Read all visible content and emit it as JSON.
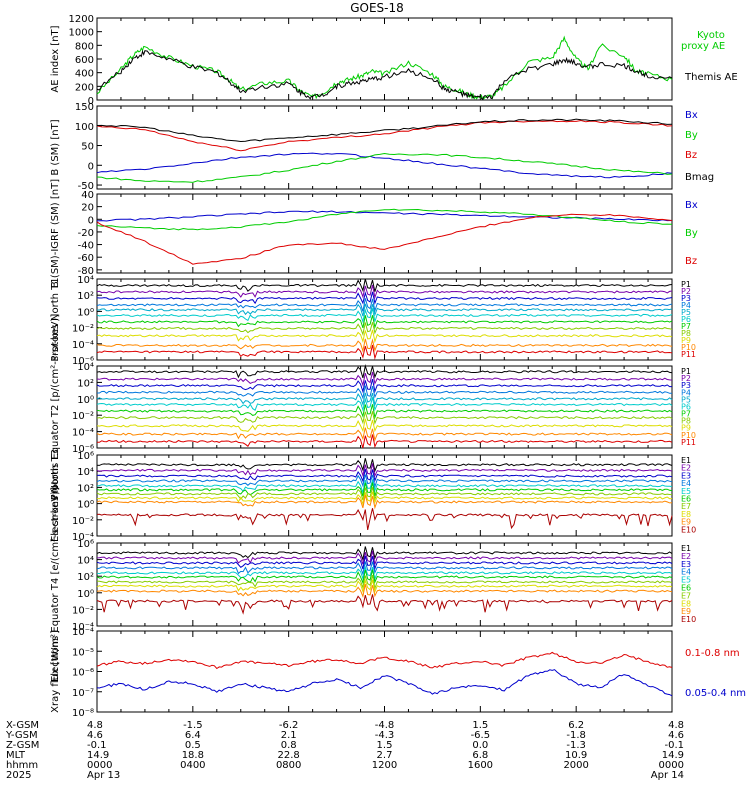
{
  "title": "GOES-18",
  "colors": {
    "black": "#000000",
    "red": "#dd0000",
    "green": "#00cc00",
    "blue": "#0000cc",
    "purple": "#7700aa",
    "cyan": "#00cccc",
    "yellow": "#dddd00",
    "orange": "#ff8800"
  },
  "chart_data": [
    {
      "type": "line",
      "ylabel": "AE index [nT]",
      "ylim": [
        0,
        1200
      ],
      "yticks": [
        "0",
        "200",
        "400",
        "600",
        "800",
        "1000",
        "1200"
      ],
      "series": [
        {
          "name": "Kyoto proxy AE",
          "color": "#00cc00",
          "x": [
            0,
            1,
            1.5,
            2,
            3,
            4,
            5,
            5.5,
            6,
            7,
            8,
            8.5,
            9,
            9.5,
            10,
            10.5,
            11,
            11.5,
            12,
            13,
            14,
            14.5,
            15,
            15.5,
            16,
            16.5,
            17,
            18,
            19,
            19.5,
            20,
            20.5,
            21,
            22,
            22.5,
            23,
            24
          ],
          "y": [
            100,
            450,
            650,
            780,
            620,
            500,
            420,
            300,
            150,
            250,
            280,
            130,
            40,
            120,
            260,
            300,
            350,
            420,
            380,
            550,
            380,
            200,
            150,
            80,
            40,
            60,
            200,
            560,
            620,
            900,
            600,
            450,
            800,
            650,
            420,
            380,
            300
          ]
        },
        {
          "name": "Themis AE",
          "color": "#000000",
          "x": [
            0,
            1,
            1.5,
            2,
            3,
            4,
            5,
            5.5,
            6,
            7,
            8,
            8.5,
            9,
            9.5,
            10,
            10.5,
            11,
            11.5,
            12,
            13,
            14,
            14.5,
            15,
            15.5,
            16,
            16.5,
            17,
            18,
            19,
            19.5,
            20,
            20.5,
            21,
            22,
            22.5,
            23,
            24
          ],
          "y": [
            150,
            420,
            600,
            700,
            600,
            480,
            400,
            280,
            130,
            200,
            240,
            110,
            40,
            90,
            200,
            240,
            270,
            300,
            340,
            420,
            320,
            160,
            120,
            60,
            30,
            50,
            280,
            450,
            520,
            580,
            540,
            480,
            520,
            500,
            420,
            360,
            320
          ]
        }
      ]
    },
    {
      "type": "line",
      "ylabel": "B (SM) [nT]",
      "ylim": [
        -60,
        150
      ],
      "yticks": [
        "-50",
        "0",
        "50",
        "100",
        "150"
      ],
      "series": [
        {
          "name": "Bx",
          "color": "#0000cc",
          "x": [
            0,
            2,
            4,
            6,
            8,
            10,
            12,
            14,
            16,
            18,
            20,
            22,
            24
          ],
          "y": [
            -18,
            -10,
            5,
            20,
            28,
            30,
            18,
            5,
            -8,
            -20,
            -28,
            -30,
            -20
          ]
        },
        {
          "name": "By",
          "color": "#00cc00",
          "x": [
            0,
            2,
            4,
            6,
            8,
            10,
            12,
            14,
            16,
            18,
            20,
            22,
            24
          ],
          "y": [
            -30,
            -40,
            -42,
            -30,
            -12,
            10,
            28,
            28,
            20,
            10,
            -2,
            -14,
            -22
          ]
        },
        {
          "name": "Bz",
          "color": "#dd0000",
          "x": [
            0,
            2,
            4,
            6,
            8,
            10,
            12,
            14,
            16,
            18,
            20,
            22,
            24
          ],
          "y": [
            98,
            90,
            60,
            38,
            60,
            70,
            80,
            95,
            108,
            112,
            112,
            108,
            100
          ]
        },
        {
          "name": "Bmag",
          "color": "#000000",
          "x": [
            0,
            2,
            4,
            6,
            8,
            10,
            12,
            14,
            16,
            18,
            20,
            22,
            24
          ],
          "y": [
            102,
            96,
            75,
            60,
            70,
            78,
            88,
            98,
            110,
            114,
            115,
            112,
            104
          ]
        }
      ]
    },
    {
      "type": "line",
      "ylabel": "B (SM)-IGRF (SM) [nT]",
      "ylim": [
        -85,
        40
      ],
      "yticks": [
        "-80",
        "-60",
        "-40",
        "-20",
        "0",
        "20",
        "40"
      ],
      "series": [
        {
          "name": "Bx",
          "color": "#0000cc",
          "x": [
            0,
            2,
            4,
            6,
            8,
            10,
            12,
            14,
            16,
            18,
            20,
            22,
            24
          ],
          "y": [
            -2,
            0,
            4,
            8,
            12,
            12,
            10,
            8,
            6,
            4,
            2,
            0,
            -2
          ]
        },
        {
          "name": "By",
          "color": "#00cc00",
          "x": [
            0,
            2,
            4,
            6,
            8,
            10,
            12,
            14,
            16,
            18,
            20,
            22,
            24
          ],
          "y": [
            -10,
            -14,
            -16,
            -12,
            -4,
            8,
            16,
            14,
            12,
            8,
            2,
            -4,
            -8
          ]
        },
        {
          "name": "Bz",
          "color": "#dd0000",
          "x": [
            0,
            2,
            4,
            6,
            8,
            10,
            12,
            14,
            16,
            18,
            20,
            22,
            24
          ],
          "y": [
            -5,
            -35,
            -70,
            -62,
            -40,
            -38,
            -48,
            -30,
            -12,
            2,
            8,
            6,
            -2
          ]
        }
      ]
    },
    {
      "type": "line",
      "ylabel": "Protons North T1",
      "yscale": "log",
      "ylim": [
        -6,
        4
      ],
      "yticks": [
        "10⁴",
        "10²",
        "10⁰",
        "10⁻²",
        "10⁻⁴",
        "10⁻⁶"
      ],
      "series": [
        {
          "name": "P1",
          "color": "#000000",
          "level": 3.2
        },
        {
          "name": "P2",
          "color": "#7700aa",
          "level": 2.4
        },
        {
          "name": "P3",
          "color": "#0000cc",
          "level": 1.6
        },
        {
          "name": "P4",
          "color": "#0077dd",
          "level": 0.8
        },
        {
          "name": "P5",
          "color": "#00aacc",
          "level": 0.2
        },
        {
          "name": "P6",
          "color": "#00cccc",
          "level": -0.5
        },
        {
          "name": "P7",
          "color": "#00cc00",
          "level": -1.3
        },
        {
          "name": "P8",
          "color": "#88cc00",
          "level": -2.1
        },
        {
          "name": "P9",
          "color": "#dddd00",
          "level": -3.0
        },
        {
          "name": "P10",
          "color": "#ff8800",
          "level": -4.2
        },
        {
          "name": "P11",
          "color": "#dd0000",
          "level": -5.0
        }
      ]
    },
    {
      "type": "line",
      "ylabel": "Protons Equator T2 [p/(cm²-s-sr-keV)]",
      "yscale": "log",
      "ylim": [
        -6,
        4
      ],
      "yticks": [
        "10⁴",
        "10²",
        "10⁰",
        "10⁻²",
        "10⁻⁴",
        "10⁻⁶"
      ],
      "series": [
        {
          "name": "P1",
          "color": "#000000",
          "level": 3.3
        },
        {
          "name": "P2",
          "color": "#7700aa",
          "level": 2.4
        },
        {
          "name": "P3",
          "color": "#0000cc",
          "level": 1.6
        },
        {
          "name": "P4",
          "color": "#0077dd",
          "level": 0.8
        },
        {
          "name": "P5",
          "color": "#00aacc",
          "level": 0.0
        },
        {
          "name": "P6",
          "color": "#00cccc",
          "level": -0.7
        },
        {
          "name": "P7",
          "color": "#00cc00",
          "level": -1.5
        },
        {
          "name": "P8",
          "color": "#88cc00",
          "level": -2.3
        },
        {
          "name": "P9",
          "color": "#dddd00",
          "level": -3.3
        },
        {
          "name": "P10",
          "color": "#ff8800",
          "level": -4.3
        },
        {
          "name": "P11",
          "color": "#dd0000",
          "level": -5.2
        }
      ]
    },
    {
      "type": "line",
      "ylabel": "Electrons North T3",
      "yscale": "log",
      "ylim": [
        -4,
        6
      ],
      "yticks": [
        "10⁶",
        "10⁴",
        "10²",
        "10⁰",
        "10⁻²",
        "10⁻⁴"
      ],
      "series": [
        {
          "name": "E1",
          "color": "#000000",
          "level": 4.8
        },
        {
          "name": "E2",
          "color": "#7700aa",
          "level": 4.1
        },
        {
          "name": "E3",
          "color": "#0000cc",
          "level": 3.4
        },
        {
          "name": "E4",
          "color": "#0077dd",
          "level": 2.8
        },
        {
          "name": "E5",
          "color": "#00cccc",
          "level": 2.2
        },
        {
          "name": "E6",
          "color": "#00cc00",
          "level": 1.7
        },
        {
          "name": "E7",
          "color": "#88cc00",
          "level": 1.2
        },
        {
          "name": "E8",
          "color": "#dddd00",
          "level": 0.7
        },
        {
          "name": "E9",
          "color": "#ff8800",
          "level": 0.2
        },
        {
          "name": "E10",
          "color": "#aa0000",
          "level": -1.4
        }
      ]
    },
    {
      "type": "line",
      "ylabel": "Electrons Equator T4 [e/(cm²-s-sr-keV)]",
      "yscale": "log",
      "ylim": [
        -4,
        6
      ],
      "yticks": [
        "10⁶",
        "10⁴",
        "10²",
        "10⁰",
        "10⁻²",
        "10⁻⁴"
      ],
      "series": [
        {
          "name": "E1",
          "color": "#000000",
          "level": 4.8
        },
        {
          "name": "E2",
          "color": "#7700aa",
          "level": 4.2
        },
        {
          "name": "E3",
          "color": "#0000cc",
          "level": 3.6
        },
        {
          "name": "E4",
          "color": "#0077dd",
          "level": 3.0
        },
        {
          "name": "E5",
          "color": "#00cccc",
          "level": 2.4
        },
        {
          "name": "E6",
          "color": "#00cc00",
          "level": 1.9
        },
        {
          "name": "E7",
          "color": "#88cc00",
          "level": 1.3
        },
        {
          "name": "E8",
          "color": "#dddd00",
          "level": 0.8
        },
        {
          "name": "E9",
          "color": "#ff8800",
          "level": 0.2
        },
        {
          "name": "E10",
          "color": "#aa0000",
          "level": -1.0
        }
      ]
    },
    {
      "type": "line",
      "ylabel": "Xray flux [W/m²]",
      "yscale": "log",
      "ylim": [
        -8,
        -4
      ],
      "yticks": [
        "10⁻⁴",
        "10⁻⁵",
        "10⁻⁶",
        "10⁻⁷",
        "10⁻⁸"
      ],
      "series": [
        {
          "name": "0.1-0.8 nm",
          "color": "#dd0000",
          "x": [
            0,
            1,
            2,
            3,
            4,
            5,
            6,
            7,
            8,
            9,
            10,
            11,
            12,
            13,
            14,
            15,
            16,
            17,
            18,
            19,
            20,
            21,
            22,
            23,
            24
          ],
          "y": [
            -5.7,
            -5.5,
            -5.6,
            -5.4,
            -5.5,
            -5.8,
            -5.5,
            -5.6,
            -5.7,
            -5.5,
            -5.4,
            -5.6,
            -5.3,
            -5.5,
            -5.8,
            -5.6,
            -5.5,
            -5.7,
            -5.3,
            -5.1,
            -5.5,
            -5.6,
            -5.2,
            -5.5,
            -5.8
          ]
        },
        {
          "name": "0.05-0.4 nm",
          "color": "#0000cc",
          "x": [
            0,
            1,
            2,
            3,
            4,
            5,
            6,
            7,
            8,
            9,
            10,
            11,
            12,
            13,
            14,
            15,
            16,
            17,
            18,
            19,
            20,
            21,
            22,
            23,
            24
          ],
          "y": [
            -6.8,
            -6.6,
            -6.9,
            -6.5,
            -6.6,
            -7.0,
            -6.6,
            -6.8,
            -7.0,
            -6.6,
            -6.4,
            -6.8,
            -6.2,
            -6.6,
            -7.1,
            -6.8,
            -6.7,
            -6.9,
            -6.2,
            -5.9,
            -6.6,
            -6.8,
            -6.1,
            -6.7,
            -7.2
          ]
        }
      ]
    }
  ],
  "ephemeris": {
    "rows": [
      {
        "label": "X-GSM",
        "values": [
          "4.8",
          "-1.5",
          "-6.2",
          "-4.8",
          "1.5",
          "6.2",
          "4.8"
        ]
      },
      {
        "label": "Y-GSM",
        "values": [
          "4.6",
          "6.4",
          "2.1",
          "-4.3",
          "-6.5",
          "-1.8",
          "4.6"
        ]
      },
      {
        "label": "Z-GSM",
        "values": [
          "-0.1",
          "0.5",
          "0.8",
          "1.5",
          "0.0",
          "-1.3",
          "-0.1"
        ]
      },
      {
        "label": "MLT",
        "values": [
          "14.9",
          "18.8",
          "22.8",
          "2.7",
          "6.8",
          "10.9",
          "14.9"
        ]
      },
      {
        "label": "hhmm",
        "values": [
          "0000",
          "0400",
          "0800",
          "1200",
          "1600",
          "2000",
          "0000"
        ]
      },
      {
        "label": "2025",
        "values": [
          "Apr 13",
          "",
          "",
          "",
          "",
          "",
          "Apr 14"
        ]
      }
    ]
  }
}
